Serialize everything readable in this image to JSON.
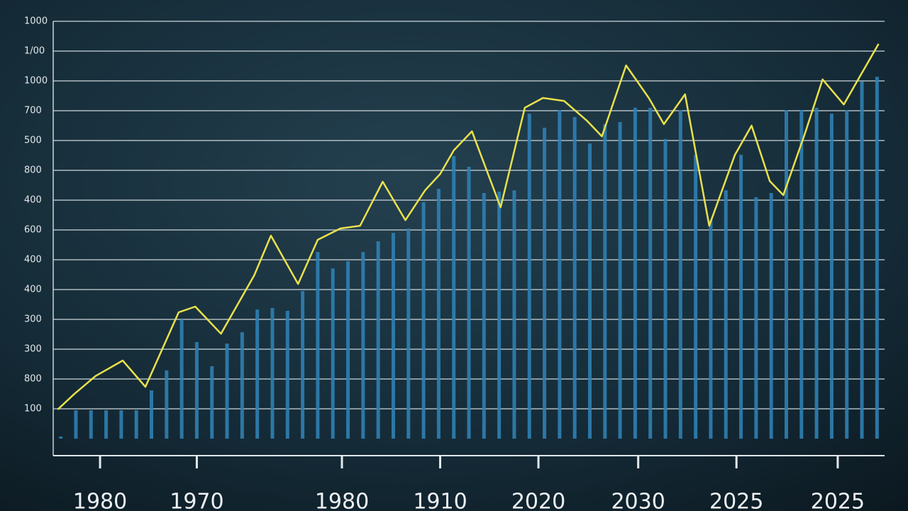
{
  "chart_data": {
    "type": "combo",
    "xlim": [
      -0.5,
      54.5
    ],
    "xticks": [
      {
        "value": 2.6,
        "label": "1980"
      },
      {
        "value": 9.0,
        "label": "1970"
      },
      {
        "value": 18.6,
        "label": "1980"
      },
      {
        "value": 25.1,
        "label": "1910"
      },
      {
        "value": 31.6,
        "label": "2020"
      },
      {
        "value": 38.2,
        "label": "2030"
      },
      {
        "value": 44.7,
        "label": "2025"
      },
      {
        "value": 51.4,
        "label": "2025"
      }
    ],
    "ylim": [
      -57,
      1400
    ],
    "yticks": [
      100,
      {
        "value": 200,
        "label": "800"
      },
      {
        "value": 300,
        "label": "300"
      },
      {
        "value": 400,
        "label": "300"
      },
      {
        "value": 500,
        "label": "400"
      },
      {
        "value": 600,
        "label": "400"
      },
      {
        "value": 700,
        "label": "600"
      },
      {
        "value": 800,
        "label": "400"
      },
      {
        "value": 900,
        "label": "800"
      },
      {
        "value": 1000,
        "label": "500"
      },
      {
        "value": 1100,
        "label": "700"
      },
      {
        "value": 1200,
        "label": "1000"
      },
      {
        "value": 1300,
        "label": "1/00"
      },
      {
        "value": 1400,
        "label": "1000"
      }
    ],
    "grid": true,
    "series": [
      {
        "type": "bar",
        "color": "#2f7fb3",
        "x": [
          0,
          1,
          2,
          3,
          4,
          5,
          6,
          7,
          8,
          9,
          10,
          11,
          12,
          13,
          14,
          15,
          16,
          17,
          18,
          19,
          20,
          21,
          22,
          23,
          24,
          25,
          26,
          27,
          28,
          29,
          30,
          31,
          32,
          33,
          34,
          35,
          36,
          37,
          38,
          39,
          40,
          41,
          42,
          43,
          44,
          45,
          46,
          47,
          48,
          49,
          50,
          51,
          52,
          53,
          54
        ],
        "values": [
          7,
          95,
          95,
          95,
          95,
          95,
          162,
          229,
          400,
          324,
          243,
          319,
          357,
          433,
          438,
          429,
          495,
          626,
          571,
          595,
          626,
          662,
          690,
          705,
          793,
          838,
          948,
          912,
          824,
          829,
          833,
          1090,
          1043,
          1102,
          1079,
          990,
          1055,
          1062,
          1110,
          1110,
          1005,
          1102,
          952,
          733,
          833,
          952,
          810,
          824,
          1102,
          1102,
          1110,
          1090,
          1102,
          1198,
          1214
        ]
      },
      {
        "type": "line",
        "color": "#e9e14c",
        "x": [
          -0.2,
          0.9,
          2.3,
          4.1,
          5.6,
          7.8,
          8.9,
          10.6,
          12.8,
          13.9,
          15.7,
          17.0,
          18.5,
          19.8,
          21.3,
          22.8,
          24.1,
          25.1,
          26.0,
          27.2,
          29.1,
          30.7,
          31.9,
          33.3,
          34.8,
          35.8,
          37.4,
          38.9,
          39.9,
          41.3,
          42.9,
          44.6,
          45.7,
          46.9,
          47.8,
          49.2,
          50.4,
          51.8,
          54.1
        ],
        "values": [
          98,
          150,
          210,
          262,
          174,
          424,
          443,
          352,
          548,
          681,
          519,
          667,
          705,
          714,
          862,
          733,
          833,
          888,
          967,
          1031,
          776,
          1110,
          1143,
          1133,
          1067,
          1014,
          1252,
          1143,
          1055,
          1155,
          714,
          952,
          1050,
          864,
          817,
          1019,
          1205,
          1121,
          1324
        ]
      }
    ]
  }
}
